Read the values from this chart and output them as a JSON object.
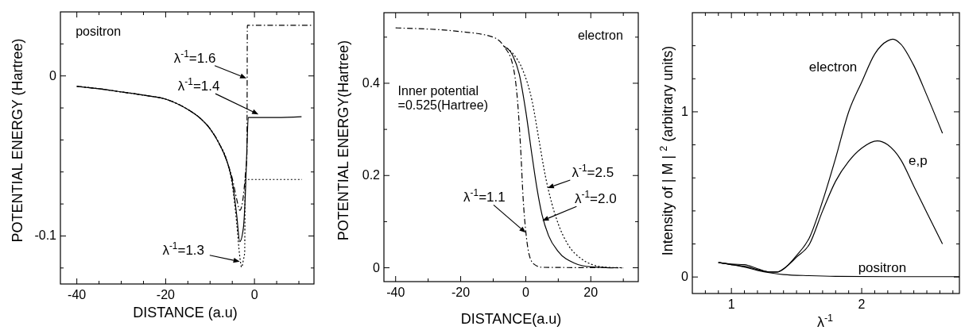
{
  "chart_data": [
    {
      "type": "line",
      "xlabel": "DISTANCE (a.u)",
      "ylabel": "POTENTIAL ENERGY (Hartree)",
      "xlim": [
        -43.7,
        13.4
      ],
      "ylim": [
        -0.13,
        0.04
      ],
      "xticks": [
        -40,
        {
          "value": -35,
          "label": null
        },
        {
          "value": -30,
          "label": null
        },
        {
          "value": -25,
          "label": null
        },
        -20,
        {
          "value": -15,
          "label": null
        },
        {
          "value": -10,
          "label": null
        },
        {
          "value": -5,
          "label": null
        },
        0,
        {
          "value": 5,
          "label": null
        },
        {
          "value": 10,
          "label": null
        }
      ],
      "yticks": [
        {
          "value": -0.12,
          "label": null
        },
        -0.1,
        {
          "value": -0.08,
          "label": null
        },
        {
          "value": -0.06,
          "label": null
        },
        {
          "value": -0.04,
          "label": null
        },
        {
          "value": -0.02,
          "label": null
        },
        0,
        {
          "value": 0.02,
          "label": null
        }
      ],
      "series": [
        {
          "color": "#000000",
          "line_style": "solid",
          "x": [
            -40,
            -35,
            -30,
            -25,
            -20,
            -15,
            -12,
            -10,
            -8,
            -6,
            -5,
            -4,
            -3.3,
            -2.5,
            -2,
            -1.7,
            -1.4,
            0,
            5,
            10.6
          ],
          "values": [
            -0.0065,
            -0.008,
            -0.01,
            -0.012,
            -0.0145,
            -0.021,
            -0.027,
            -0.033,
            -0.042,
            -0.055,
            -0.066,
            -0.087,
            -0.1035,
            -0.095,
            -0.07,
            -0.045,
            -0.026,
            -0.026,
            -0.026,
            -0.0255
          ]
        },
        {
          "color": "#000000",
          "line_style": "dashed",
          "x": [
            -40,
            -35,
            -30,
            -25,
            -20,
            -15,
            -12,
            -10,
            -8,
            -6,
            -5,
            -4,
            -3.3,
            -2.5,
            -2,
            -1.7,
            -1.6,
            0,
            5,
            13.3
          ],
          "values": [
            -0.0065,
            -0.008,
            -0.01,
            -0.012,
            -0.0145,
            -0.021,
            -0.027,
            -0.033,
            -0.042,
            -0.055,
            -0.064,
            -0.077,
            -0.084,
            -0.075,
            -0.06,
            -0.05,
            0.0316,
            0.0316,
            0.0316,
            0.0316
          ]
        },
        {
          "color": "#000000",
          "line_style": "dotted",
          "x": [
            -40,
            -35,
            -30,
            -25,
            -20,
            -15,
            -12,
            -10,
            -8,
            -6,
            -5,
            -4,
            -3.3,
            -2.9,
            -2.5,
            -2.2,
            -2.1,
            0,
            5,
            10.7
          ],
          "values": [
            -0.0065,
            -0.008,
            -0.01,
            -0.012,
            -0.0145,
            -0.021,
            -0.027,
            -0.033,
            -0.042,
            -0.055,
            -0.068,
            -0.092,
            -0.113,
            -0.1195,
            -0.115,
            -0.11,
            -0.0647,
            -0.0647,
            -0.0647,
            -0.0647
          ]
        }
      ],
      "annotations": [
        "positron",
        {
          "text": "λ$^{-1}$=1.6",
          "x": -1.8,
          "y": -0.0015
        },
        {
          "text": "λ$^{-1}$=1.4",
          "x": 0.9,
          "y": -0.024
        },
        {
          "text": "λ$^{-1}$=1.3",
          "x": -3.3,
          "y": -0.116
        }
      ]
    },
    {
      "type": "line",
      "xlabel": "DISTANCE(a.u)",
      "ylabel": "POTENTIAL ENERGY(Hartree)",
      "xlim": [
        -43.6,
        34.6
      ],
      "ylim": [
        -0.03,
        0.553
      ],
      "xticks": [
        -40,
        {
          "value": -30,
          "label": null
        },
        -20,
        {
          "value": -10,
          "label": null
        },
        0,
        {
          "value": 10,
          "label": null
        },
        20,
        {
          "value": 30,
          "label": null
        }
      ],
      "yticks": [
        0,
        {
          "value": 0.1,
          "label": null
        },
        0.2,
        {
          "value": 0.3,
          "label": null
        },
        0.4,
        {
          "value": 0.5,
          "label": null
        }
      ],
      "series": [
        {
          "color": "#000000",
          "line_style": "dashed",
          "x": [
            -40,
            -20,
            -10,
            -6.7,
            -4,
            -2.5,
            -1.5,
            -0.8,
            0,
            1,
            2.5,
            5,
            30
          ],
          "values": [
            0.52,
            0.512,
            0.5,
            0.48,
            0.44,
            0.36,
            0.25,
            0.15,
            0.08,
            0.03,
            0.008,
            0.001,
            0
          ]
        },
        {
          "color": "#000000",
          "line_style": "solid",
          "x": [
            -6.7,
            -4,
            -2,
            0,
            2,
            3.5,
            5,
            7,
            10,
            15,
            20,
            27
          ],
          "values": [
            0.48,
            0.46,
            0.42,
            0.34,
            0.24,
            0.17,
            0.115,
            0.07,
            0.035,
            0.01,
            0.002,
            0
          ]
        },
        {
          "color": "#000000",
          "line_style": "dotted",
          "x": [
            -6.7,
            -4,
            -1,
            2,
            4,
            6,
            8,
            10,
            13,
            17,
            20,
            25,
            30
          ],
          "values": [
            0.48,
            0.465,
            0.43,
            0.36,
            0.28,
            0.2,
            0.14,
            0.095,
            0.05,
            0.02,
            0.008,
            0.001,
            0
          ]
        }
      ],
      "annotations": [
        "electron",
        "Inner potential\n=0.525(Hartree)",
        {
          "text": "λ$^{-1}$=2.5",
          "x": 6.7,
          "y": 0.173
        },
        {
          "text": "λ$^{-1}$=2.0",
          "x": 5.1,
          "y": 0.102
        },
        {
          "text": "λ$^{-1}$=1.1",
          "x": 0,
          "y": 0.076
        }
      ]
    },
    {
      "type": "line",
      "xlabel": "λ$^{-1}$",
      "ylabel": "Intensity of  | M | $^{2}$ (arbitrary units)",
      "xlim": [
        0.7,
        2.75
      ],
      "ylim": [
        -0.1,
        1.6
      ],
      "xticks": [
        {
          "value": 0.8,
          "label": null
        },
        {
          "value": 0.9,
          "label": null
        },
        1,
        {
          "value": 1.1,
          "label": null
        },
        {
          "value": 1.2,
          "label": null
        },
        {
          "value": 1.3,
          "label": null
        },
        {
          "value": 1.4,
          "label": null
        },
        {
          "value": 1.5,
          "label": null
        },
        {
          "value": 1.6,
          "label": null
        },
        {
          "value": 1.7,
          "label": null
        },
        {
          "value": 1.8,
          "label": null
        },
        {
          "value": 1.9,
          "label": null
        },
        2,
        {
          "value": 2.1,
          "label": null
        },
        {
          "value": 2.2,
          "label": null
        },
        {
          "value": 2.3,
          "label": null
        },
        {
          "value": 2.4,
          "label": null
        },
        {
          "value": 2.5,
          "label": null
        },
        {
          "value": 2.6,
          "label": null
        },
        {
          "value": 2.7,
          "label": null
        }
      ],
      "yticks": [
        0,
        {
          "value": 0.2,
          "label": null
        },
        {
          "value": 0.4,
          "label": null
        },
        {
          "value": 0.6,
          "label": null
        },
        {
          "value": 0.8,
          "label": null
        },
        1,
        {
          "value": 1.2,
          "label": null
        },
        {
          "value": 1.4,
          "label": null
        }
      ],
      "series": [
        {
          "name": "electron",
          "color": "#000000",
          "x": [
            0.9,
            1.0,
            1.1,
            1.2,
            1.3,
            1.35,
            1.4,
            1.5,
            1.6,
            1.7,
            1.8,
            1.9,
            2.0,
            2.1,
            2.2,
            2.24,
            2.3,
            2.4,
            2.5,
            2.62
          ],
          "values": [
            0.088,
            0.075,
            0.065,
            0.045,
            0.03,
            0.03,
            0.048,
            0.13,
            0.24,
            0.46,
            0.72,
            1.0,
            1.18,
            1.35,
            1.43,
            1.44,
            1.41,
            1.28,
            1.1,
            0.87
          ]
        },
        {
          "name": "e,p",
          "color": "#000000",
          "x": [
            0.9,
            1.0,
            1.1,
            1.2,
            1.3,
            1.35,
            1.4,
            1.5,
            1.6,
            1.7,
            1.8,
            1.9,
            2.0,
            2.12,
            2.2,
            2.3,
            2.4,
            2.5,
            2.62
          ],
          "values": [
            0.088,
            0.078,
            0.075,
            0.05,
            0.03,
            0.03,
            0.05,
            0.12,
            0.2,
            0.4,
            0.58,
            0.7,
            0.78,
            0.824,
            0.8,
            0.71,
            0.55,
            0.39,
            0.2
          ]
        },
        {
          "name": "positron",
          "color": "#000000",
          "x": [
            0.9,
            1.0,
            1.1,
            1.2,
            1.3,
            1.4,
            1.6,
            1.8,
            2.2,
            2.75
          ],
          "values": [
            0.088,
            0.075,
            0.06,
            0.04,
            0.025,
            0.015,
            0.008,
            0.004,
            0.002,
            0.002
          ]
        }
      ]
    }
  ]
}
